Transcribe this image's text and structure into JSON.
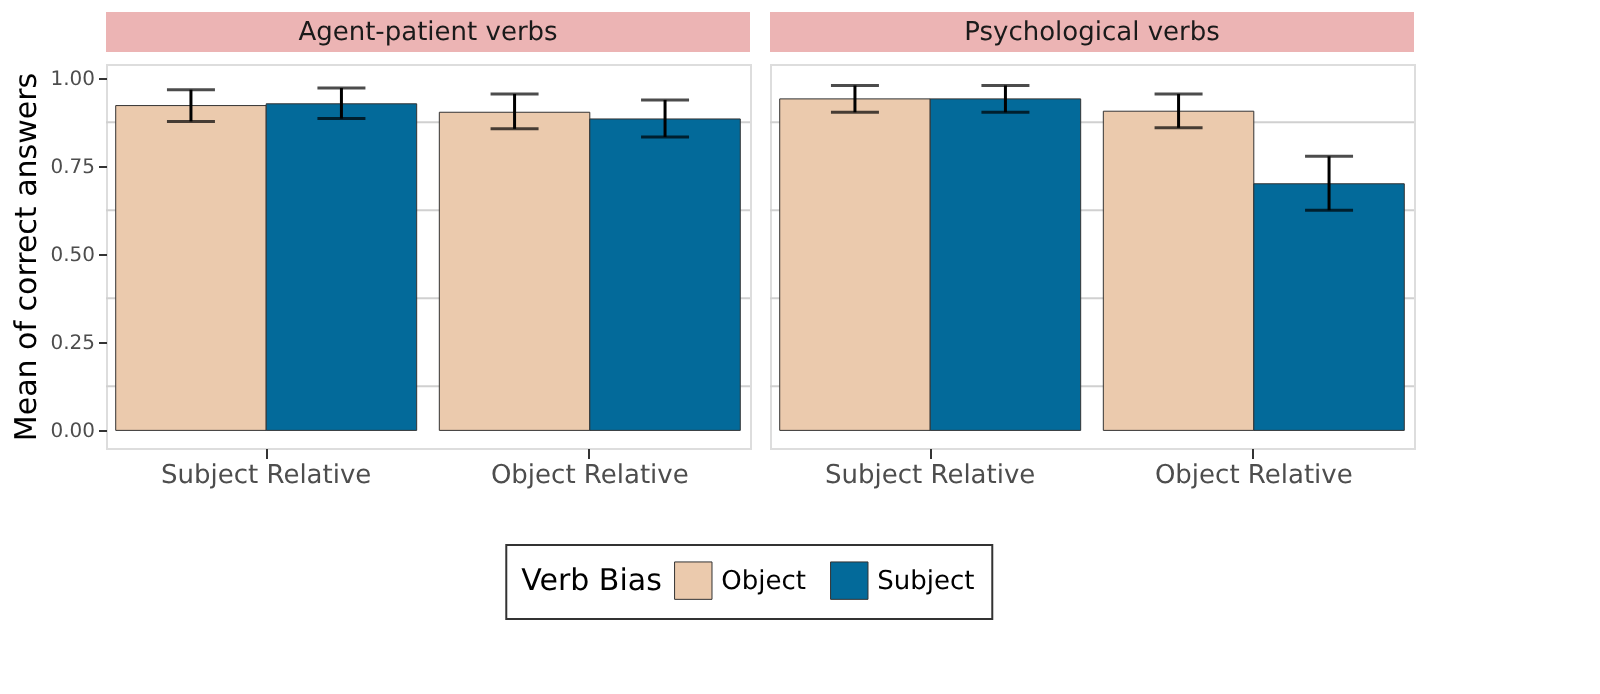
{
  "chart_data": [
    {
      "type": "bar",
      "title": "Agent-patient verbs",
      "ylabel": "Mean of correct answers",
      "legend_title": "Verb Bias",
      "legend": "bottom",
      "grid": "y",
      "categories": [
        "Subject Relative",
        "Object Relative"
      ],
      "ylim": [
        -0.05,
        1.04
      ],
      "yticks": [
        {
          "value": 0,
          "label": "0.00"
        },
        {
          "value": 0.125,
          "label": null
        },
        {
          "value": 0.25,
          "label": "0.25"
        },
        {
          "value": 0.375,
          "label": null
        },
        {
          "value": 0.5,
          "label": "0.50"
        },
        {
          "value": 0.625,
          "label": null
        },
        {
          "value": 0.75,
          "label": "0.75"
        },
        {
          "value": 0.875,
          "label": null
        },
        {
          "value": 1,
          "label": "1.00"
        }
      ],
      "series": [
        {
          "name": "Object",
          "color": "#ebcaad",
          "values": [
            0.922,
            0.903
          ],
          "errors": [
            [
              0.877,
              0.967
            ],
            [
              0.856,
              0.955
            ]
          ]
        },
        {
          "name": "Subject",
          "color": "#036a9a",
          "values": [
            0.927,
            0.884
          ],
          "errors": [
            [
              0.885,
              0.972
            ],
            [
              0.833,
              0.938
            ]
          ]
        }
      ]
    },
    {
      "type": "bar",
      "title": "Psychological verbs",
      "grid": "y",
      "tick_labels": "x",
      "categories": [
        "Subject Relative",
        "Object Relative"
      ],
      "ylim": [
        -0.05,
        1.04
      ],
      "yticks": [
        {
          "value": 0.125,
          "label": null
        },
        {
          "value": 0.375,
          "label": null
        },
        {
          "value": 0.625,
          "label": null
        },
        {
          "value": 0.875,
          "label": null
        }
      ],
      "series": [
        {
          "name": "Object",
          "color": "#ebcaad",
          "values": [
            0.941,
            0.906
          ],
          "errors": [
            [
              0.903,
              0.979
            ],
            [
              0.859,
              0.955
            ]
          ]
        },
        {
          "name": "Subject",
          "color": "#036a9a",
          "values": [
            0.941,
            0.7
          ],
          "errors": [
            [
              0.903,
              0.979
            ],
            [
              0.625,
              0.778
            ]
          ]
        }
      ]
    }
  ]
}
